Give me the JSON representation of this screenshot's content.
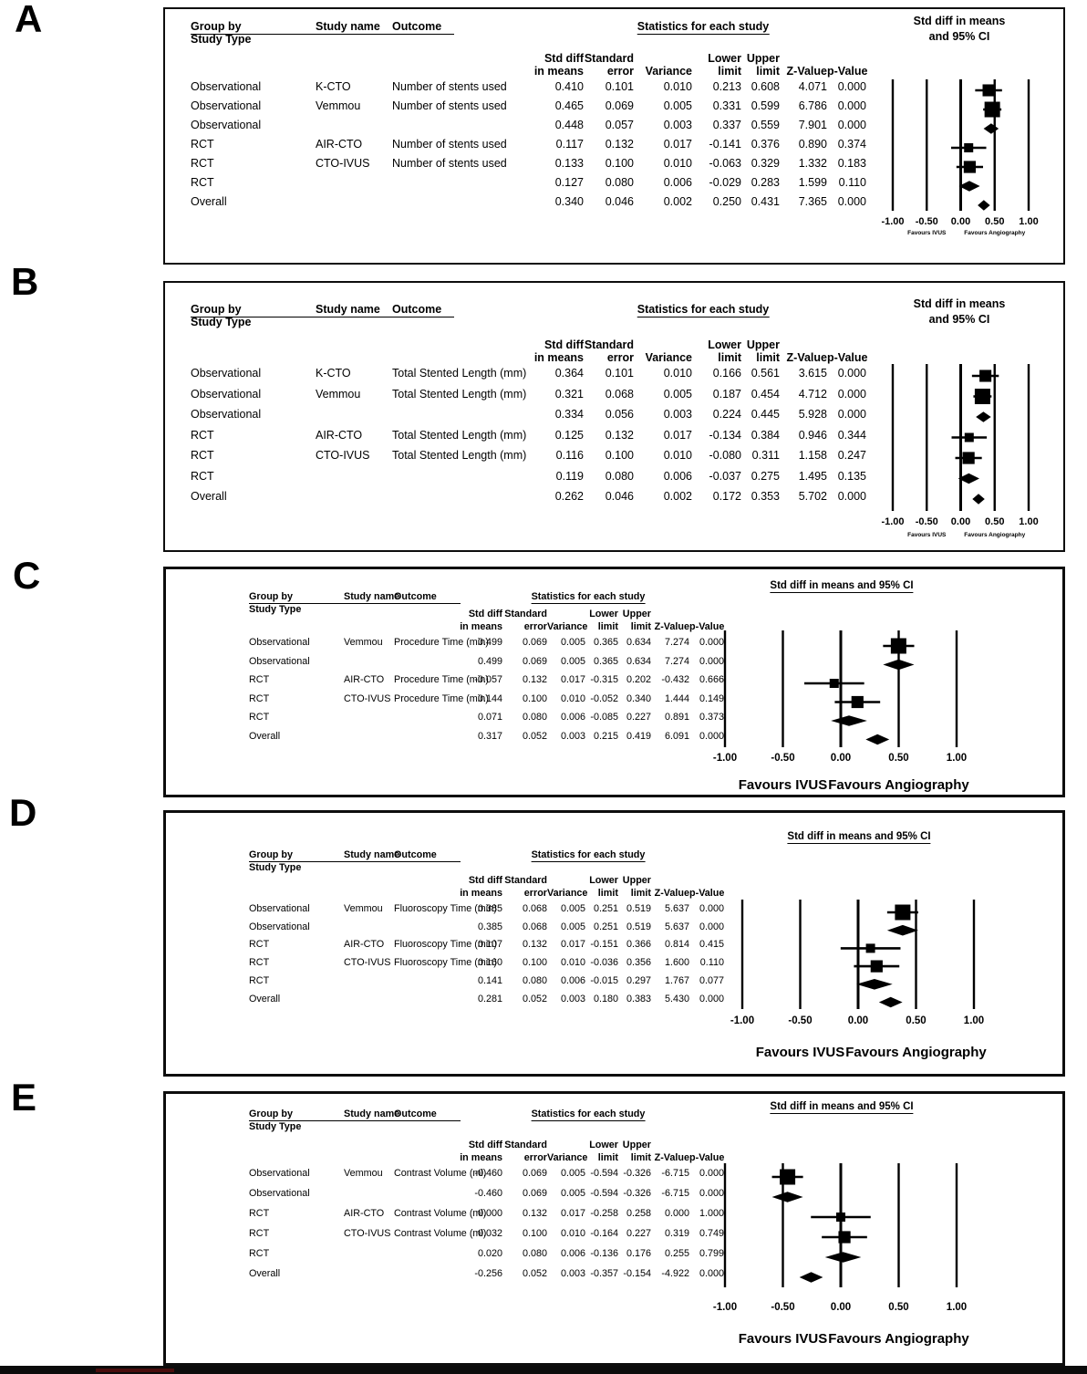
{
  "figure": {
    "panel_letters": [
      "A",
      "B",
      "C",
      "D",
      "E"
    ],
    "table_header": {
      "group_by": "Group by",
      "group_by_sub": "Study Type",
      "study_name": "Study name",
      "outcome": "Outcome",
      "stats_title": "Statistics for each study",
      "col_line1": [
        "Std diff",
        "Standard",
        "",
        "Lower",
        "Upper",
        "",
        ""
      ],
      "col_line2": [
        "in means",
        "error",
        "Variance",
        "limit",
        "limit",
        "Z-Value",
        "p-Value"
      ]
    }
  },
  "chart_data": [
    {
      "type": "forest",
      "panel": "A",
      "title": [
        "Std diff in means",
        "and 95% CI"
      ],
      "outcome": "Number of stents used",
      "xlim": [
        -1,
        1
      ],
      "x_tick_labels": [
        "-1.00",
        "-0.50",
        "0.00",
        "0.50",
        "1.00"
      ],
      "favours_left": "Favours IVUS",
      "favours_right": "Favours Angiography",
      "rows": [
        {
          "group": "Observational",
          "study": "K-CTO",
          "outcome": "Number of stents used",
          "std_diff": "0.410",
          "se": "0.101",
          "variance": "0.010",
          "lower": "0.213",
          "upper": "0.608",
          "z": "4.071",
          "p": "0.000",
          "symbol": "square"
        },
        {
          "group": "Observational",
          "study": "Vemmou",
          "outcome": "Number of stents used",
          "std_diff": "0.465",
          "se": "0.069",
          "variance": "0.005",
          "lower": "0.331",
          "upper": "0.599",
          "z": "6.786",
          "p": "0.000",
          "symbol": "square"
        },
        {
          "group": "Observational",
          "study": "",
          "outcome": "",
          "std_diff": "0.448",
          "se": "0.057",
          "variance": "0.003",
          "lower": "0.337",
          "upper": "0.559",
          "z": "7.901",
          "p": "0.000",
          "symbol": "diamond"
        },
        {
          "group": "RCT",
          "study": "AIR-CTO",
          "outcome": "Number of stents used",
          "std_diff": "0.117",
          "se": "0.132",
          "variance": "0.017",
          "lower": "-0.141",
          "upper": "0.376",
          "z": "0.890",
          "p": "0.374",
          "symbol": "square"
        },
        {
          "group": "RCT",
          "study": "CTO-IVUS",
          "outcome": "Number of stents used",
          "std_diff": "0.133",
          "se": "0.100",
          "variance": "0.010",
          "lower": "-0.063",
          "upper": "0.329",
          "z": "1.332",
          "p": "0.183",
          "symbol": "square"
        },
        {
          "group": "RCT",
          "study": "",
          "outcome": "",
          "std_diff": "0.127",
          "se": "0.080",
          "variance": "0.006",
          "lower": "-0.029",
          "upper": "0.283",
          "z": "1.599",
          "p": "0.110",
          "symbol": "diamond"
        },
        {
          "group": "Overall",
          "study": "",
          "outcome": "",
          "std_diff": "0.340",
          "se": "0.046",
          "variance": "0.002",
          "lower": "0.250",
          "upper": "0.431",
          "z": "7.365",
          "p": "0.000",
          "symbol": "diamond"
        }
      ]
    },
    {
      "type": "forest",
      "panel": "B",
      "title": [
        "Std diff in means",
        "and 95% CI"
      ],
      "outcome": "Total Stented Length (mm)",
      "xlim": [
        -1,
        1
      ],
      "x_tick_labels": [
        "-1.00",
        "-0.50",
        "0.00",
        "0.50",
        "1.00"
      ],
      "favours_left": "Favours IVUS",
      "favours_right": "Favours Angiography",
      "rows": [
        {
          "group": "Observational",
          "study": "K-CTO",
          "outcome": "Total Stented Length (mm)",
          "std_diff": "0.364",
          "se": "0.101",
          "variance": "0.010",
          "lower": "0.166",
          "upper": "0.561",
          "z": "3.615",
          "p": "0.000",
          "symbol": "square"
        },
        {
          "group": "Observational",
          "study": "Vemmou",
          "outcome": "Total Stented Length (mm)",
          "std_diff": "0.321",
          "se": "0.068",
          "variance": "0.005",
          "lower": "0.187",
          "upper": "0.454",
          "z": "4.712",
          "p": "0.000",
          "symbol": "square"
        },
        {
          "group": "Observational",
          "study": "",
          "outcome": "",
          "std_diff": "0.334",
          "se": "0.056",
          "variance": "0.003",
          "lower": "0.224",
          "upper": "0.445",
          "z": "5.928",
          "p": "0.000",
          "symbol": "diamond"
        },
        {
          "group": "RCT",
          "study": "AIR-CTO",
          "outcome": "Total Stented Length (mm)",
          "std_diff": "0.125",
          "se": "0.132",
          "variance": "0.017",
          "lower": "-0.134",
          "upper": "0.384",
          "z": "0.946",
          "p": "0.344",
          "symbol": "square"
        },
        {
          "group": "RCT",
          "study": "CTO-IVUS",
          "outcome": "Total Stented Length (mm)",
          "std_diff": "0.116",
          "se": "0.100",
          "variance": "0.010",
          "lower": "-0.080",
          "upper": "0.311",
          "z": "1.158",
          "p": "0.247",
          "symbol": "square"
        },
        {
          "group": "RCT",
          "study": "",
          "outcome": "",
          "std_diff": "0.119",
          "se": "0.080",
          "variance": "0.006",
          "lower": "-0.037",
          "upper": "0.275",
          "z": "1.495",
          "p": "0.135",
          "symbol": "diamond"
        },
        {
          "group": "Overall",
          "study": "",
          "outcome": "",
          "std_diff": "0.262",
          "se": "0.046",
          "variance": "0.002",
          "lower": "0.172",
          "upper": "0.353",
          "z": "5.702",
          "p": "0.000",
          "symbol": "diamond"
        }
      ]
    },
    {
      "type": "forest",
      "panel": "C",
      "title": [
        "Std diff in means and 95% CI"
      ],
      "outcome": "Procedure Time (min)",
      "xlim": [
        -1,
        1
      ],
      "x_tick_labels": [
        "-1.00",
        "-0.50",
        "0.00",
        "0.50",
        "1.00"
      ],
      "favours_left": "Favours IVUS",
      "favours_right": "Favours Angiography",
      "rows": [
        {
          "group": "Observational",
          "study": "Vemmou",
          "outcome": "Procedure Time (min)",
          "std_diff": "0.499",
          "se": "0.069",
          "variance": "0.005",
          "lower": "0.365",
          "upper": "0.634",
          "z": "7.274",
          "p": "0.000",
          "symbol": "square"
        },
        {
          "group": "Observational",
          "study": "",
          "outcome": "",
          "std_diff": "0.499",
          "se": "0.069",
          "variance": "0.005",
          "lower": "0.365",
          "upper": "0.634",
          "z": "7.274",
          "p": "0.000",
          "symbol": "diamond"
        },
        {
          "group": "RCT",
          "study": "AIR-CTO",
          "outcome": "Procedure Time (min)",
          "std_diff": "-0.057",
          "se": "0.132",
          "variance": "0.017",
          "lower": "-0.315",
          "upper": "0.202",
          "z": "-0.432",
          "p": "0.666",
          "symbol": "square"
        },
        {
          "group": "RCT",
          "study": "CTO-IVUS",
          "outcome": "Procedure Time (min)",
          "std_diff": "0.144",
          "se": "0.100",
          "variance": "0.010",
          "lower": "-0.052",
          "upper": "0.340",
          "z": "1.444",
          "p": "0.149",
          "symbol": "square"
        },
        {
          "group": "RCT",
          "study": "",
          "outcome": "",
          "std_diff": "0.071",
          "se": "0.080",
          "variance": "0.006",
          "lower": "-0.085",
          "upper": "0.227",
          "z": "0.891",
          "p": "0.373",
          "symbol": "diamond"
        },
        {
          "group": "Overall",
          "study": "",
          "outcome": "",
          "std_diff": "0.317",
          "se": "0.052",
          "variance": "0.003",
          "lower": "0.215",
          "upper": "0.419",
          "z": "6.091",
          "p": "0.000",
          "symbol": "diamond"
        }
      ]
    },
    {
      "type": "forest",
      "panel": "D",
      "title": [
        "Std diff in means and 95% CI"
      ],
      "outcome": "Fluoroscopy Time (min)",
      "xlim": [
        -1,
        1
      ],
      "x_tick_labels": [
        "-1.00",
        "-0.50",
        "0.00",
        "0.50",
        "1.00"
      ],
      "favours_left": "Favours IVUS",
      "favours_right": "Favours Angiography",
      "rows": [
        {
          "group": "Observational",
          "study": "Vemmou",
          "outcome": "Fluoroscopy Time (min)",
          "std_diff": "0.385",
          "se": "0.068",
          "variance": "0.005",
          "lower": "0.251",
          "upper": "0.519",
          "z": "5.637",
          "p": "0.000",
          "symbol": "square"
        },
        {
          "group": "Observational",
          "study": "",
          "outcome": "",
          "std_diff": "0.385",
          "se": "0.068",
          "variance": "0.005",
          "lower": "0.251",
          "upper": "0.519",
          "z": "5.637",
          "p": "0.000",
          "symbol": "diamond"
        },
        {
          "group": "RCT",
          "study": "AIR-CTO",
          "outcome": "Fluoroscopy Time (min)",
          "std_diff": "0.107",
          "se": "0.132",
          "variance": "0.017",
          "lower": "-0.151",
          "upper": "0.366",
          "z": "0.814",
          "p": "0.415",
          "symbol": "square"
        },
        {
          "group": "RCT",
          "study": "CTO-IVUS",
          "outcome": "Fluoroscopy Time (min)",
          "std_diff": "0.160",
          "se": "0.100",
          "variance": "0.010",
          "lower": "-0.036",
          "upper": "0.356",
          "z": "1.600",
          "p": "0.110",
          "symbol": "square"
        },
        {
          "group": "RCT",
          "study": "",
          "outcome": "",
          "std_diff": "0.141",
          "se": "0.080",
          "variance": "0.006",
          "lower": "-0.015",
          "upper": "0.297",
          "z": "1.767",
          "p": "0.077",
          "symbol": "diamond"
        },
        {
          "group": "Overall",
          "study": "",
          "outcome": "",
          "std_diff": "0.281",
          "se": "0.052",
          "variance": "0.003",
          "lower": "0.180",
          "upper": "0.383",
          "z": "5.430",
          "p": "0.000",
          "symbol": "diamond"
        }
      ]
    },
    {
      "type": "forest",
      "panel": "E",
      "title": [
        "Std diff in means and 95% CI"
      ],
      "outcome": "Contrast Volume (ml)",
      "xlim": [
        -1,
        1
      ],
      "x_tick_labels": [
        "-1.00",
        "-0.50",
        "0.00",
        "0.50",
        "1.00"
      ],
      "favours_left": "Favours IVUS",
      "favours_right": "Favours Angiography",
      "rows": [
        {
          "group": "Observational",
          "study": "Vemmou",
          "outcome": "Contrast Volume (ml)",
          "std_diff": "-0.460",
          "se": "0.069",
          "variance": "0.005",
          "lower": "-0.594",
          "upper": "-0.326",
          "z": "-6.715",
          "p": "0.000",
          "symbol": "square"
        },
        {
          "group": "Observational",
          "study": "",
          "outcome": "",
          "std_diff": "-0.460",
          "se": "0.069",
          "variance": "0.005",
          "lower": "-0.594",
          "upper": "-0.326",
          "z": "-6.715",
          "p": "0.000",
          "symbol": "diamond"
        },
        {
          "group": "RCT",
          "study": "AIR-CTO",
          "outcome": "Contrast Volume (ml)",
          "std_diff": "0.000",
          "se": "0.132",
          "variance": "0.017",
          "lower": "-0.258",
          "upper": "0.258",
          "z": "0.000",
          "p": "1.000",
          "symbol": "square"
        },
        {
          "group": "RCT",
          "study": "CTO-IVUS",
          "outcome": "Contrast Volume (ml)",
          "std_diff": "0.032",
          "se": "0.100",
          "variance": "0.010",
          "lower": "-0.164",
          "upper": "0.227",
          "z": "0.319",
          "p": "0.749",
          "symbol": "square"
        },
        {
          "group": "RCT",
          "study": "",
          "outcome": "",
          "std_diff": "0.020",
          "se": "0.080",
          "variance": "0.006",
          "lower": "-0.136",
          "upper": "0.176",
          "z": "0.255",
          "p": "0.799",
          "symbol": "diamond"
        },
        {
          "group": "Overall",
          "study": "",
          "outcome": "",
          "std_diff": "-0.256",
          "se": "0.052",
          "variance": "0.003",
          "lower": "-0.357",
          "upper": "-0.154",
          "z": "-4.922",
          "p": "0.000",
          "symbol": "diamond"
        }
      ]
    }
  ]
}
